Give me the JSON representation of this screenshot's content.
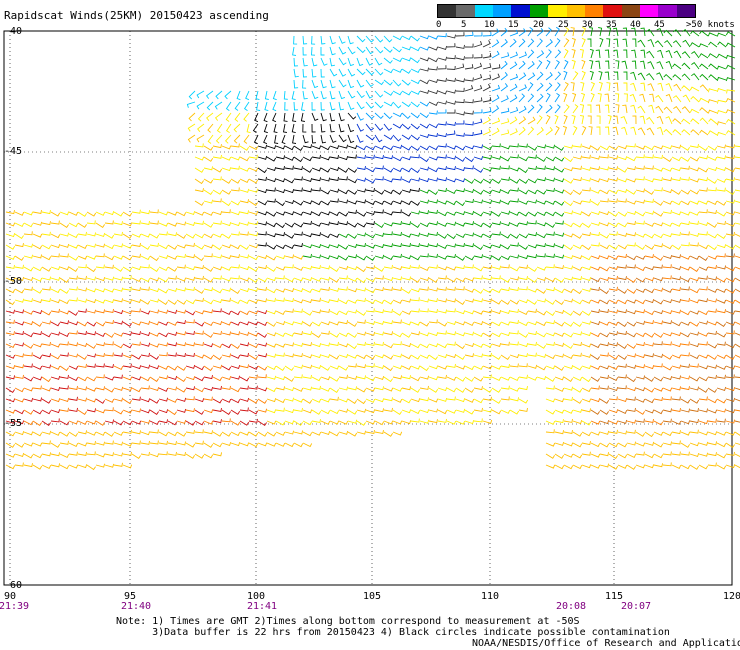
{
  "title": "Rapidscat Winds(25KM) 20150423 ascending",
  "colorbar": {
    "labels": [
      "0",
      "5",
      "10",
      "15",
      "20",
      "25",
      "30",
      "35",
      "40",
      "45",
      ">50 knots"
    ],
    "colors": [
      "#333333",
      "#6a6a6a",
      "#00d8ff",
      "#00a0ff",
      "#0010d0",
      "#00a000",
      "#ffee00",
      "#ffc000",
      "#ff8000",
      "#e01010",
      "#8b4513",
      "#ff00ff",
      "#9900cc",
      "#4b0082"
    ]
  },
  "axes": {
    "lat_labels": [
      "-40",
      "-45",
      "-50",
      "-55",
      "-60"
    ],
    "lon_labels": [
      "90",
      "95",
      "100",
      "105",
      "110",
      "115",
      "120"
    ],
    "time_labels": [
      {
        "text": "21:39",
        "lon": "90"
      },
      {
        "text": "21:40",
        "lon": "95"
      },
      {
        "text": "21:41",
        "lon": "100"
      },
      {
        "text": "20:08",
        "lon": "113"
      },
      {
        "text": "20:07",
        "lon": "115.5"
      }
    ]
  },
  "notes": {
    "line1": "Note: 1) Times are GMT 2)Times along bottom correspond to measurement at -50S",
    "line2": "      3)Data buffer is 22 hrs from 20150423 4) Black circles indicate possible contamination"
  },
  "credit": "NOAA/NESDIS/Office of Research and Applications"
}
